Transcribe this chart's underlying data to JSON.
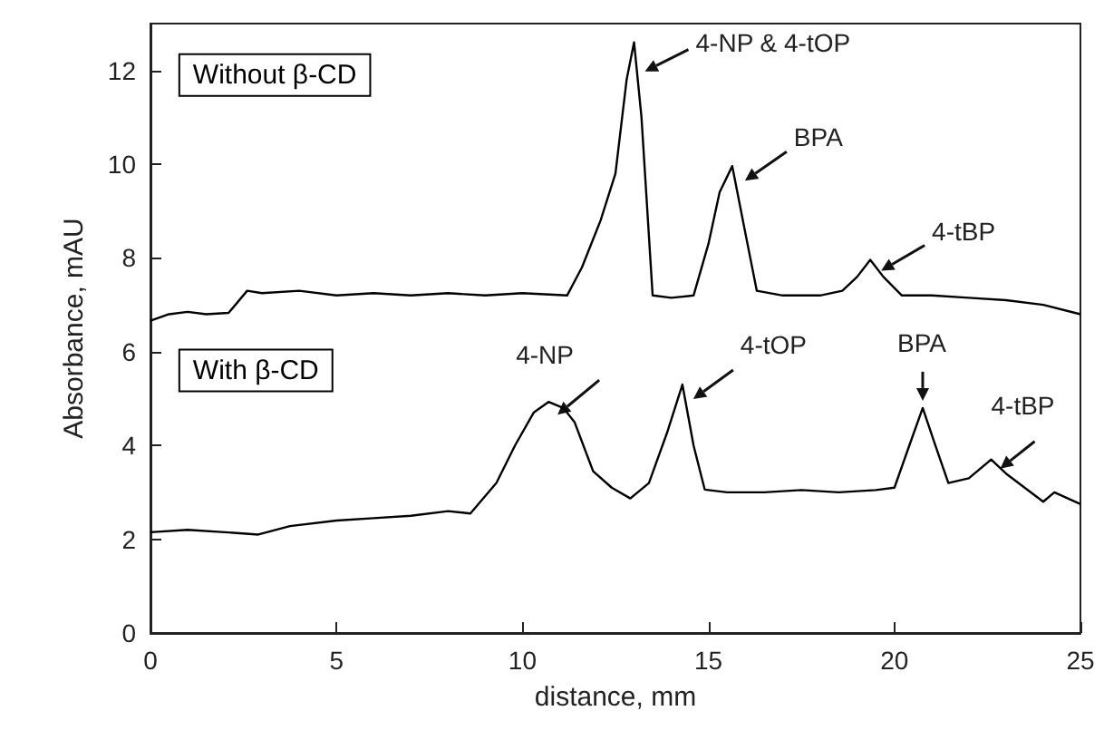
{
  "chart_data": {
    "type": "line",
    "xlabel": "distance, mm",
    "ylabel": "Absorbance, mAU",
    "xlim": [
      0,
      25
    ],
    "xticks": [
      0,
      5,
      10,
      15,
      20,
      25
    ],
    "ylim": [
      0,
      13
    ],
    "yticks": [
      0,
      2,
      4,
      6,
      8,
      10,
      12
    ],
    "grid": false,
    "legend": false,
    "series": [
      {
        "name": "Without β-CD",
        "color": "#000000",
        "x": [
          0,
          0.5,
          1,
          1.5,
          2.1,
          2.6,
          3,
          4,
          5,
          6,
          7,
          8,
          9,
          10,
          11.2,
          11.6,
          12.1,
          12.5,
          12.8,
          13.0,
          13.2,
          13.5,
          14,
          14.6,
          15,
          15.3,
          15.64,
          16,
          16.3,
          17,
          18,
          18.6,
          19,
          19.35,
          19.7,
          20.2,
          21,
          22,
          23,
          24,
          25
        ],
        "values": [
          6.66,
          6.8,
          6.85,
          6.8,
          6.83,
          7.3,
          7.25,
          7.3,
          7.2,
          7.25,
          7.2,
          7.25,
          7.2,
          7.25,
          7.2,
          7.8,
          8.8,
          9.8,
          11.8,
          12.6,
          11.0,
          7.2,
          7.15,
          7.2,
          8.3,
          9.4,
          9.96,
          8.5,
          7.3,
          7.2,
          7.2,
          7.3,
          7.6,
          7.96,
          7.6,
          7.2,
          7.2,
          7.15,
          7.1,
          7.0,
          6.8
        ]
      },
      {
        "name": "With β-CD",
        "color": "#000000",
        "x": [
          0,
          1,
          2,
          2.9,
          3.75,
          5,
          6,
          7,
          8,
          8.6,
          9.3,
          9.8,
          10.3,
          10.7,
          11.1,
          11.4,
          11.9,
          12.4,
          12.9,
          13.4,
          13.9,
          14.3,
          14.6,
          14.9,
          15.5,
          16.5,
          17.5,
          18.5,
          19.5,
          20,
          20.4,
          20.76,
          21.1,
          21.45,
          22,
          22.6,
          23,
          23.5,
          24,
          24.3,
          25
        ],
        "values": [
          2.15,
          2.2,
          2.15,
          2.1,
          2.28,
          2.4,
          2.45,
          2.5,
          2.6,
          2.55,
          3.2,
          4.0,
          4.7,
          4.93,
          4.8,
          4.5,
          3.45,
          3.1,
          2.87,
          3.2,
          4.3,
          5.3,
          4.0,
          3.06,
          3.0,
          3.0,
          3.05,
          3.0,
          3.05,
          3.1,
          4.0,
          4.8,
          4.0,
          3.2,
          3.3,
          3.7,
          3.4,
          3.1,
          2.8,
          3.0,
          2.75
        ]
      }
    ],
    "annotations": [
      {
        "text": "4-NP & 4-tOP",
        "x": 13.0,
        "y": 12.6
      },
      {
        "text": "BPA",
        "x": 15.64,
        "y": 9.96
      },
      {
        "text": "4-tBP",
        "x": 19.35,
        "y": 7.96
      },
      {
        "text": "4-NP",
        "x": 10.7,
        "y": 4.93
      },
      {
        "text": "4-tOP",
        "x": 14.3,
        "y": 5.3
      },
      {
        "text": "BPA",
        "x": 20.76,
        "y": 4.8
      },
      {
        "text": "4-tBP",
        "x": 22.6,
        "y": 3.7
      }
    ]
  }
}
